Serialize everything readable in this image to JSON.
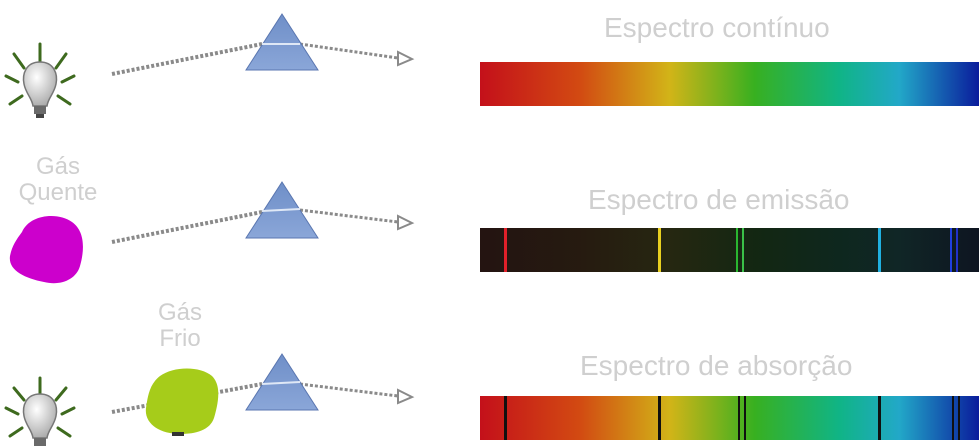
{
  "rows": {
    "continuous": {
      "title": "Espectro contínuo"
    },
    "emission": {
      "title": "Espectro de emissão",
      "source_label_line1": "Gás",
      "source_label_line2": "Quente"
    },
    "absorption": {
      "title": "Espectro de absorção",
      "filter_label_line1": "Gás",
      "filter_label_line2": "Frio"
    }
  },
  "colors": {
    "label": "#cfcfcf",
    "prism": "#7f9fd4",
    "hot_gas": "#cc00cc",
    "cold_gas": "#a6cc1a",
    "bulb": "#c8c8c8"
  },
  "icons": [
    "light-bulb-icon",
    "prism-icon",
    "hot-gas-cloud-icon",
    "cold-gas-cloud-icon"
  ]
}
